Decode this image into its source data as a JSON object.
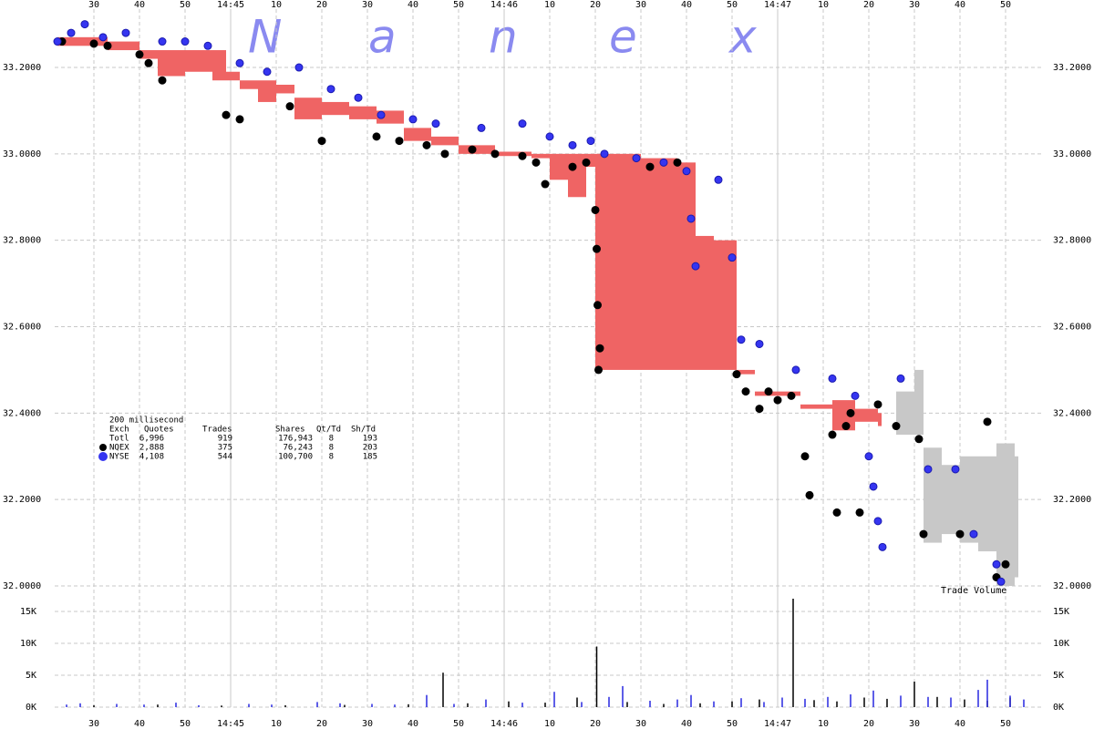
{
  "chart_data": {
    "type": "trades",
    "watermark": [
      "N",
      "a",
      "n",
      "e",
      "x"
    ],
    "xlim": [
      21.4,
      238.4
    ],
    "xticks": [
      30,
      40,
      50,
      {
        "value": 60,
        "label": "14:45"
      },
      {
        "value": 70,
        "label": "10"
      },
      {
        "value": 80,
        "label": "20"
      },
      {
        "value": 90,
        "label": "30"
      },
      {
        "value": 100,
        "label": "40"
      },
      {
        "value": 110,
        "label": "50"
      },
      {
        "value": 120,
        "label": "14:46"
      },
      {
        "value": 130,
        "label": "10"
      },
      {
        "value": 140,
        "label": "20"
      },
      {
        "value": 150,
        "label": "30"
      },
      {
        "value": 160,
        "label": "40"
      },
      {
        "value": 170,
        "label": "50"
      },
      {
        "value": 180,
        "label": "14:47"
      },
      {
        "value": 190,
        "label": "10"
      },
      {
        "value": 200,
        "label": "20"
      },
      {
        "value": 210,
        "label": "30"
      },
      {
        "value": 220,
        "label": "40"
      },
      {
        "value": 230,
        "label": "50"
      }
    ],
    "ylim": [
      32.0,
      33.335
    ],
    "yticks": [
      {
        "value": 32.0,
        "label": "32.0000"
      },
      {
        "value": 32.2,
        "label": "32.2000"
      },
      {
        "value": 32.4,
        "label": "32.4000"
      },
      {
        "value": 32.6,
        "label": "32.6000"
      },
      {
        "value": 32.8,
        "label": "32.8000"
      },
      {
        "value": 33.0,
        "label": "33.0000"
      },
      {
        "value": 33.2,
        "label": "33.2000"
      }
    ],
    "y2lim": [
      0,
      17000
    ],
    "y2ticks": [
      {
        "value": 0,
        "label": "0K"
      },
      {
        "value": 5000,
        "label": "5K"
      },
      {
        "value": 10000,
        "label": "10K"
      },
      {
        "value": 15000,
        "label": "15K"
      }
    ],
    "volume_label": "Trade Volume",
    "grid": true,
    "bands": [
      {
        "color": "#ef6464",
        "x": [
          22,
          33,
          40,
          44,
          50,
          56,
          59,
          62,
          66,
          70,
          74,
          80,
          86,
          92,
          98,
          104,
          110,
          118,
          126,
          130,
          134,
          138,
          140,
          150,
          158,
          162,
          166,
          171,
          175,
          185,
          192,
          197,
          202
        ],
        "low": [
          33.25,
          33.24,
          33.22,
          33.18,
          33.19,
          33.17,
          33.17,
          33.15,
          33.12,
          33.14,
          33.08,
          33.09,
          33.08,
          33.07,
          33.03,
          33.02,
          33.0,
          32.995,
          32.99,
          32.94,
          32.9,
          32.97,
          32.5,
          32.5,
          32.5,
          32.5,
          32.5,
          32.49,
          32.44,
          32.41,
          32.36,
          32.38,
          32.37
        ],
        "high": [
          33.27,
          33.26,
          33.24,
          33.24,
          33.24,
          33.24,
          33.19,
          33.17,
          33.17,
          33.16,
          33.13,
          33.12,
          33.11,
          33.1,
          33.06,
          33.04,
          33.02,
          33.005,
          33.0,
          33.0,
          33.0,
          33.0,
          33.0,
          32.99,
          32.98,
          32.81,
          32.8,
          32.5,
          32.45,
          32.42,
          32.43,
          32.41,
          32.4
        ]
      },
      {
        "color": "#c8c8c8",
        "x": [
          206,
          210,
          212,
          216,
          220,
          224,
          228,
          232
        ],
        "low": [
          32.35,
          32.35,
          32.1,
          32.12,
          32.1,
          32.08,
          32.0,
          32.02
        ],
        "high": [
          32.45,
          32.5,
          32.32,
          32.28,
          32.3,
          32.3,
          32.33,
          32.3
        ]
      }
    ],
    "series": [
      {
        "name": "NQEX",
        "color": "#000000",
        "x": [
          23,
          30,
          33,
          40,
          42,
          45,
          59,
          62,
          73,
          80,
          92,
          97,
          103,
          107,
          113,
          118,
          124,
          127,
          129,
          135,
          138,
          140,
          140.3,
          140.5,
          140.7,
          141,
          152,
          158,
          171,
          173,
          176,
          178,
          180,
          183,
          186,
          187,
          192,
          193,
          195,
          196,
          198,
          202,
          206,
          211,
          212,
          220,
          226,
          228,
          230
        ],
        "values": [
          33.26,
          33.255,
          33.25,
          33.23,
          33.21,
          33.17,
          33.09,
          33.08,
          33.11,
          33.03,
          33.04,
          33.03,
          33.02,
          33.0,
          33.01,
          33.0,
          32.995,
          32.98,
          32.93,
          32.97,
          32.98,
          32.87,
          32.78,
          32.65,
          32.5,
          32.55,
          32.97,
          32.98,
          32.49,
          32.45,
          32.41,
          32.45,
          32.43,
          32.44,
          32.3,
          32.21,
          32.35,
          32.17,
          32.37,
          32.4,
          32.17,
          32.42,
          32.37,
          32.34,
          32.12,
          32.12,
          32.38,
          32.02,
          32.05
        ]
      },
      {
        "name": "NYSE",
        "color": "#3535f0",
        "x": [
          22,
          25,
          28,
          32,
          37,
          45,
          50,
          55,
          62,
          68,
          75,
          82,
          88,
          93,
          100,
          105,
          115,
          124,
          130,
          135,
          139,
          142,
          149,
          155,
          160,
          161,
          162,
          167,
          170,
          172,
          176,
          184,
          192,
          197,
          200,
          201,
          202,
          203,
          207,
          213,
          219,
          223,
          228,
          229
        ],
        "values": [
          33.26,
          33.28,
          33.3,
          33.27,
          33.28,
          33.26,
          33.26,
          33.25,
          33.21,
          33.19,
          33.2,
          33.15,
          33.13,
          33.09,
          33.08,
          33.07,
          33.06,
          33.07,
          33.04,
          33.02,
          33.03,
          33.0,
          32.99,
          32.98,
          32.96,
          32.85,
          32.74,
          32.94,
          32.76,
          32.57,
          32.56,
          32.5,
          32.48,
          32.44,
          32.3,
          32.23,
          32.15,
          32.09,
          32.48,
          32.27,
          32.27,
          32.12,
          32.05,
          32.01
        ]
      }
    ],
    "volume": [
      {
        "name": "NQEX",
        "color": "#000000",
        "x": [
          30,
          44,
          58,
          72,
          85,
          99,
          106.6,
          112,
          121,
          129,
          136,
          140.3,
          147,
          155,
          163,
          170,
          176,
          183.4,
          188,
          193,
          199,
          204,
          210,
          215,
          221,
          226,
          231
        ],
        "values": [
          300,
          400,
          250,
          300,
          350,
          450,
          5400,
          600,
          900,
          700,
          1500,
          9500,
          800,
          500,
          600,
          900,
          1200,
          17000,
          1100,
          900,
          1500,
          1300,
          4000,
          1600,
          1200,
          1000,
          1500
        ]
      },
      {
        "name": "NYSE",
        "color": "#2828e0",
        "x": [
          24,
          27,
          35,
          41,
          48,
          53,
          64,
          69,
          79,
          84,
          91,
          96,
          103,
          109,
          116,
          124,
          131,
          137,
          143,
          146,
          152,
          158,
          161,
          166,
          172,
          177,
          181,
          186,
          191,
          196,
          201,
          207,
          213,
          218,
          224,
          226,
          231,
          234
        ],
        "values": [
          400,
          600,
          500,
          400,
          700,
          300,
          500,
          400,
          800,
          600,
          500,
          400,
          1900,
          500,
          1200,
          700,
          2400,
          800,
          1600,
          3300,
          1000,
          1200,
          1900,
          900,
          1400,
          800,
          1500,
          1300,
          1600,
          2000,
          2600,
          1800,
          1600,
          1500,
          2700,
          4300,
          1800,
          1200
        ]
      }
    ],
    "stats": {
      "caption": "200 millisecond",
      "header": [
        "Exch",
        "Quotes",
        "Trades",
        "Shares",
        "Qt/Td",
        "Sh/Td"
      ],
      "rows": [
        [
          "Totl",
          "6,996",
          "919",
          "176,943",
          "8",
          "193"
        ],
        [
          "NQEX",
          "2,888",
          "375",
          "76,243",
          "8",
          "203"
        ],
        [
          "NYSE",
          "4,108",
          "544",
          "100,700",
          "8",
          "185"
        ]
      ]
    }
  }
}
